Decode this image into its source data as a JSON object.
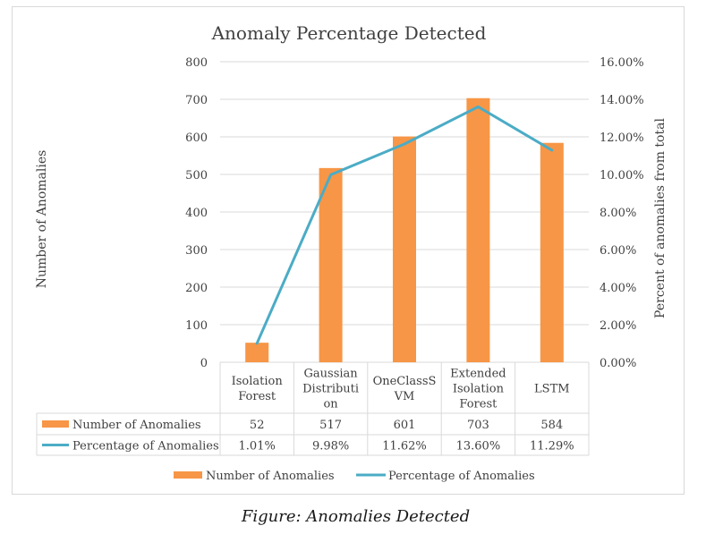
{
  "chart_data": {
    "type": "bar",
    "title": "Anomaly Percentage Detected",
    "ylabel": "Number of Anomalies",
    "y2label": "Percent of anomalies from total",
    "categories": [
      [
        "Isolation",
        "Forest"
      ],
      [
        "Gaussian",
        "Distributi",
        "on"
      ],
      [
        "OneClassS",
        "VM"
      ],
      [
        "Extended",
        "Isolation",
        "Forest"
      ],
      [
        "LSTM"
      ]
    ],
    "ylim": [
      0,
      800
    ],
    "y_ticks": [
      "0",
      "100",
      "200",
      "300",
      "400",
      "500",
      "600",
      "700",
      "800"
    ],
    "y2lim": [
      0,
      16
    ],
    "y2_ticks": [
      "0.00%",
      "2.00%",
      "4.00%",
      "6.00%",
      "8.00%",
      "10.00%",
      "12.00%",
      "14.00%",
      "16.00%"
    ],
    "grid": true,
    "legend_position": "bottom",
    "series": [
      {
        "name": "Number of Anomalies",
        "kind": "bar",
        "axis": "left",
        "color": "#f79646",
        "values": [
          52,
          517,
          601,
          703,
          584
        ],
        "labels": [
          "52",
          "517",
          "601",
          "703",
          "584"
        ]
      },
      {
        "name": "Percentage of Anomalies",
        "kind": "line",
        "axis": "right",
        "color": "#4bacc6",
        "values": [
          1.01,
          9.98,
          11.62,
          13.6,
          11.29
        ],
        "labels": [
          "1.01%",
          "9.98%",
          "11.62%",
          "13.60%",
          "11.29%"
        ]
      }
    ]
  },
  "caption": "Figure: Anomalies Detected"
}
